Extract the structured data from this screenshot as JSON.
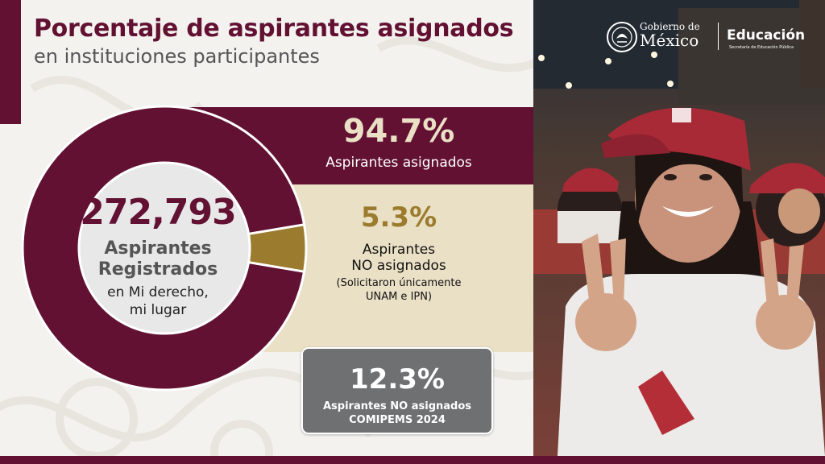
{
  "title": "Porcentaje de aspirantes asignados",
  "subtitle": "en instituciones participantes",
  "colors": {
    "maroon": "#621132",
    "gold": "#9b7c2e",
    "cream": "#eae0c6",
    "gray_box": "#6f7072",
    "inner_circle": "#e8e8e8"
  },
  "center": {
    "total": "272,793",
    "line1": "Aspirantes",
    "line2": "Registrados",
    "line3": "en Mi derecho,",
    "line4": "mi lugar"
  },
  "assigned": {
    "pct": "94.7%",
    "label": "Aspirantes asignados"
  },
  "not_assigned": {
    "pct": "5.3%",
    "line1": "Aspirantes",
    "line2": "NO asignados",
    "line3": "(Solicitaron únicamente",
    "line4": "UNAM e IPN)"
  },
  "comipems": {
    "pct": "12.3%",
    "line1": "Aspirantes NO asignados",
    "line2": "COMIPEMS 2024"
  },
  "logos": {
    "gov_line1": "Gobierno de",
    "gov_line2": "México",
    "edu": "Educación",
    "edu_sub": "Secretaría de Educación Pública"
  },
  "chart_data": {
    "type": "pie",
    "categories": [
      "Aspirantes asignados",
      "Aspirantes NO asignados"
    ],
    "values": [
      94.7,
      5.3
    ],
    "total": 272793,
    "colors": [
      "#621132",
      "#9b7c2e"
    ]
  }
}
